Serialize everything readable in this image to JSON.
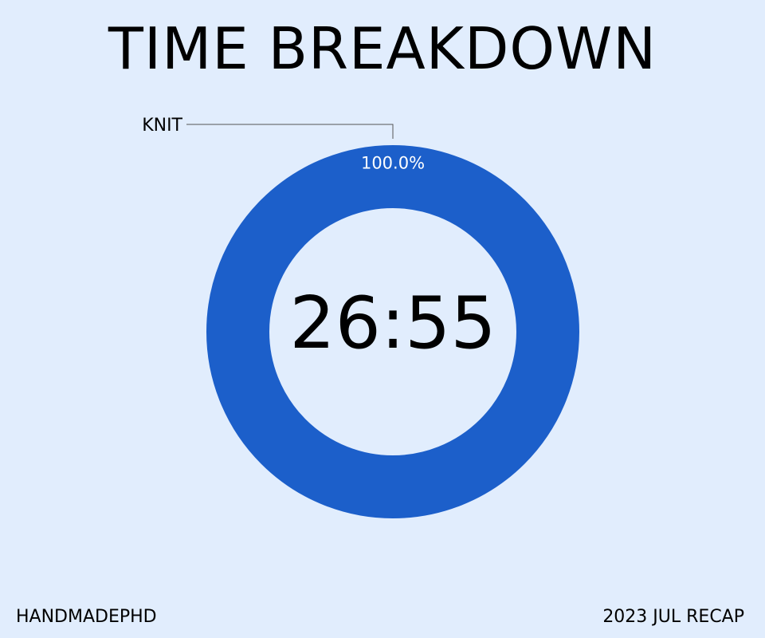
{
  "page": {
    "title": "TIME BREAKDOWN",
    "footer_left": "HANDMADEPHD",
    "footer_right": "2023 JUL RECAP"
  },
  "chart_data": {
    "type": "pie",
    "donut": true,
    "center_label": "26:55",
    "slices": [
      {
        "label": "KNIT",
        "value": 100.0,
        "percent_label": "100.0%",
        "color": "#1c5fca"
      }
    ],
    "legend": "none"
  },
  "colors": {
    "background": "#e1edfd",
    "accent": "#1c5fca",
    "text": "#000000"
  }
}
